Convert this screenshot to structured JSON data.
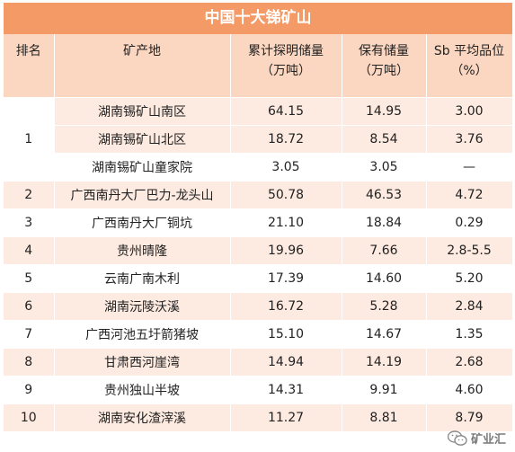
{
  "title": "中国十大锑矿山",
  "header": {
    "rank": "排名",
    "mine": "矿产地",
    "cumulative_line1": "累计探明储量",
    "cumulative_line2": "（万吨）",
    "retained_line1": "保有储量",
    "retained_line2": "（万吨）",
    "grade_line1": "Sb 平均品位",
    "grade_line2": "（%）"
  },
  "rows": [
    {
      "rank": "1",
      "mine": "湖南锡矿山南区",
      "cumulative": "64.15",
      "retained": "14.95",
      "grade": "3.00"
    },
    {
      "rank": "",
      "mine": "湖南锡矿山北区",
      "cumulative": "18.72",
      "retained": "8.54",
      "grade": "3.76"
    },
    {
      "rank": "",
      "mine": "湖南锡矿山童家院",
      "cumulative": "3.05",
      "retained": "3.05",
      "grade": "—"
    },
    {
      "rank": "2",
      "mine": "广西南丹大厂巴力-龙头山",
      "cumulative": "50.78",
      "retained": "46.53",
      "grade": "4.72"
    },
    {
      "rank": "3",
      "mine": "广西南丹大厂铜坑",
      "cumulative": "21.10",
      "retained": "18.84",
      "grade": "0.29"
    },
    {
      "rank": "4",
      "mine": "贵州晴隆",
      "cumulative": "19.96",
      "retained": "7.66",
      "grade": "2.8-5.5"
    },
    {
      "rank": "5",
      "mine": "云南广南木利",
      "cumulative": "17.39",
      "retained": "14.60",
      "grade": "5.20"
    },
    {
      "rank": "6",
      "mine": "湖南沅陵沃溪",
      "cumulative": "16.72",
      "retained": "5.28",
      "grade": "2.84"
    },
    {
      "rank": "7",
      "mine": "广西河池五圩箭猪坡",
      "cumulative": "15.10",
      "retained": "14.67",
      "grade": "1.35"
    },
    {
      "rank": "8",
      "mine": "甘肃西河崖湾",
      "cumulative": "14.94",
      "retained": "14.19",
      "grade": "2.68"
    },
    {
      "rank": "9",
      "mine": "贵州独山半坡",
      "cumulative": "14.31",
      "retained": "9.91",
      "grade": "4.60"
    },
    {
      "rank": "10",
      "mine": "湖南安化渣滓溪",
      "cumulative": "11.27",
      "retained": "8.81",
      "grade": "8.79"
    }
  ],
  "watermark": {
    "text": "矿业汇",
    "icon": "wechat-icon"
  },
  "colors": {
    "title_bg": "#f39a66",
    "header_bg": "#fbd7c1",
    "row_light": "#fdeae0",
    "row_white": "#ffffff"
  }
}
